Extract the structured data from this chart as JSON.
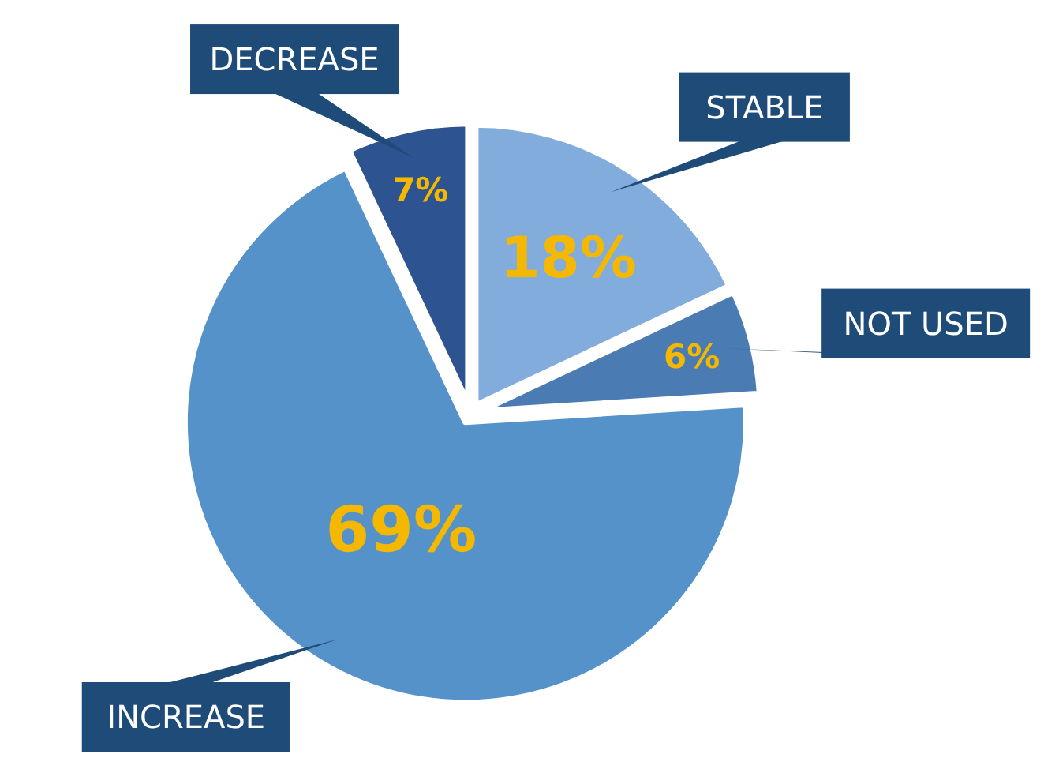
{
  "chart_data": {
    "type": "pie",
    "categories": [
      "STABLE",
      "NOT USED",
      "INCREASE",
      "DECREASE"
    ],
    "values": [
      18,
      6,
      69,
      7
    ],
    "colors": [
      "#82acdc",
      "#4a7cb3",
      "#5592c9",
      "#2e5391"
    ],
    "value_labels": [
      "18%",
      "6%",
      "69%",
      "7%"
    ]
  }
}
